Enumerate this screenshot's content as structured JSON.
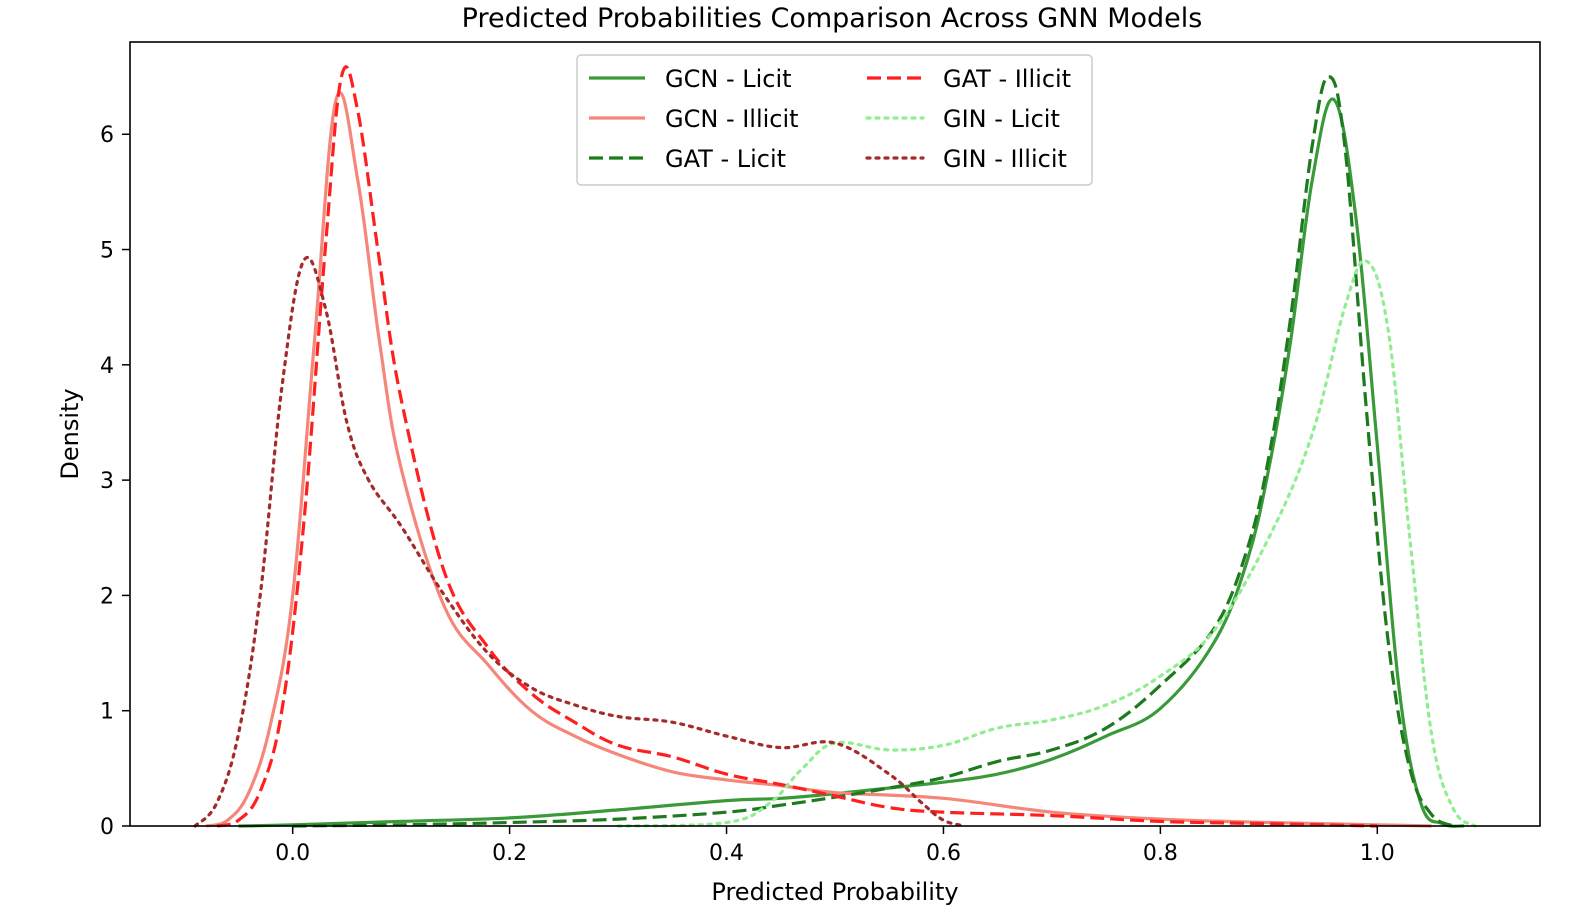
{
  "chart_data": {
    "type": "line",
    "title": "Predicted Probabilities Comparison Across GNN Models",
    "xlabel": "Predicted Probability",
    "ylabel": "Density",
    "xlim": [
      -0.15,
      1.15
    ],
    "ylim": [
      0,
      6.8
    ],
    "xticks": [
      0.0,
      0.2,
      0.4,
      0.6,
      0.8,
      1.0
    ],
    "xtick_labels": [
      "0.0",
      "0.2",
      "0.4",
      "0.6",
      "0.8",
      "1.0"
    ],
    "yticks": [
      0,
      1,
      2,
      3,
      4,
      5,
      6
    ],
    "ytick_labels": [
      "0",
      "1",
      "2",
      "3",
      "4",
      "5",
      "6"
    ],
    "grid": false,
    "legend_position": "top-center",
    "series": [
      {
        "name": "GCN - Licit",
        "color": "#3a9a3a",
        "dash": "solid",
        "points": [
          [
            -0.05,
            0
          ],
          [
            0.0,
            0.01
          ],
          [
            0.1,
            0.04
          ],
          [
            0.2,
            0.07
          ],
          [
            0.3,
            0.14
          ],
          [
            0.4,
            0.22
          ],
          [
            0.45,
            0.24
          ],
          [
            0.5,
            0.28
          ],
          [
            0.55,
            0.33
          ],
          [
            0.6,
            0.38
          ],
          [
            0.65,
            0.45
          ],
          [
            0.7,
            0.58
          ],
          [
            0.75,
            0.78
          ],
          [
            0.8,
            1.02
          ],
          [
            0.85,
            1.6
          ],
          [
            0.88,
            2.3
          ],
          [
            0.9,
            3.1
          ],
          [
            0.92,
            4.2
          ],
          [
            0.94,
            5.6
          ],
          [
            0.96,
            6.3
          ],
          [
            0.98,
            5.3
          ],
          [
            1.0,
            3.3
          ],
          [
            1.02,
            1.2
          ],
          [
            1.04,
            0.2
          ],
          [
            1.06,
            0.02
          ],
          [
            1.08,
            0
          ]
        ]
      },
      {
        "name": "GCN - Illicit",
        "color": "#f5877a",
        "dash": "solid",
        "points": [
          [
            -0.08,
            0
          ],
          [
            -0.06,
            0.05
          ],
          [
            -0.04,
            0.3
          ],
          [
            -0.02,
            0.9
          ],
          [
            0.0,
            2.0
          ],
          [
            0.02,
            4.2
          ],
          [
            0.04,
            6.3
          ],
          [
            0.06,
            5.6
          ],
          [
            0.08,
            4.2
          ],
          [
            0.1,
            3.1
          ],
          [
            0.14,
            1.9
          ],
          [
            0.18,
            1.4
          ],
          [
            0.22,
            1.0
          ],
          [
            0.26,
            0.78
          ],
          [
            0.3,
            0.62
          ],
          [
            0.35,
            0.47
          ],
          [
            0.4,
            0.4
          ],
          [
            0.45,
            0.35
          ],
          [
            0.5,
            0.29
          ],
          [
            0.6,
            0.24
          ],
          [
            0.7,
            0.12
          ],
          [
            0.8,
            0.06
          ],
          [
            0.9,
            0.03
          ],
          [
            1.0,
            0.01
          ],
          [
            1.05,
            0
          ]
        ]
      },
      {
        "name": "GAT - Licit",
        "color": "#1e7a1e",
        "dash": "dashed",
        "points": [
          [
            0.0,
            0
          ],
          [
            0.1,
            0.01
          ],
          [
            0.2,
            0.03
          ],
          [
            0.3,
            0.06
          ],
          [
            0.4,
            0.12
          ],
          [
            0.45,
            0.18
          ],
          [
            0.5,
            0.25
          ],
          [
            0.55,
            0.33
          ],
          [
            0.6,
            0.42
          ],
          [
            0.65,
            0.56
          ],
          [
            0.7,
            0.66
          ],
          [
            0.75,
            0.85
          ],
          [
            0.8,
            1.22
          ],
          [
            0.85,
            1.72
          ],
          [
            0.88,
            2.4
          ],
          [
            0.9,
            3.2
          ],
          [
            0.92,
            4.4
          ],
          [
            0.94,
            5.9
          ],
          [
            0.955,
            6.5
          ],
          [
            0.97,
            5.9
          ],
          [
            0.99,
            3.6
          ],
          [
            1.01,
            1.6
          ],
          [
            1.03,
            0.5
          ],
          [
            1.05,
            0.1
          ],
          [
            1.07,
            0
          ]
        ]
      },
      {
        "name": "GAT - Illicit",
        "color": "#ff1f1f",
        "dash": "dashed",
        "points": [
          [
            -0.07,
            0
          ],
          [
            -0.05,
            0.05
          ],
          [
            -0.03,
            0.3
          ],
          [
            -0.01,
            1.0
          ],
          [
            0.01,
            2.6
          ],
          [
            0.03,
            5.0
          ],
          [
            0.045,
            6.5
          ],
          [
            0.06,
            6.2
          ],
          [
            0.08,
            4.9
          ],
          [
            0.1,
            3.7
          ],
          [
            0.14,
            2.2
          ],
          [
            0.18,
            1.55
          ],
          [
            0.22,
            1.15
          ],
          [
            0.26,
            0.9
          ],
          [
            0.3,
            0.7
          ],
          [
            0.35,
            0.6
          ],
          [
            0.4,
            0.45
          ],
          [
            0.45,
            0.36
          ],
          [
            0.5,
            0.26
          ],
          [
            0.55,
            0.16
          ],
          [
            0.6,
            0.12
          ],
          [
            0.7,
            0.09
          ],
          [
            0.8,
            0.04
          ],
          [
            0.9,
            0.02
          ],
          [
            1.0,
            0
          ]
        ]
      },
      {
        "name": "GIN - Licit",
        "color": "#90ee90",
        "dash": "dotted",
        "points": [
          [
            0.3,
            0
          ],
          [
            0.4,
            0.03
          ],
          [
            0.44,
            0.2
          ],
          [
            0.47,
            0.5
          ],
          [
            0.5,
            0.72
          ],
          [
            0.55,
            0.66
          ],
          [
            0.6,
            0.7
          ],
          [
            0.65,
            0.85
          ],
          [
            0.7,
            0.92
          ],
          [
            0.75,
            1.05
          ],
          [
            0.8,
            1.3
          ],
          [
            0.85,
            1.7
          ],
          [
            0.9,
            2.5
          ],
          [
            0.94,
            3.4
          ],
          [
            0.97,
            4.5
          ],
          [
            0.99,
            4.9
          ],
          [
            1.01,
            4.3
          ],
          [
            1.03,
            2.5
          ],
          [
            1.05,
            0.8
          ],
          [
            1.07,
            0.15
          ],
          [
            1.09,
            0
          ]
        ]
      },
      {
        "name": "GIN - Illicit",
        "color": "#a52a2a",
        "dash": "dotted",
        "points": [
          [
            -0.09,
            0
          ],
          [
            -0.07,
            0.2
          ],
          [
            -0.05,
            0.8
          ],
          [
            -0.03,
            2.0
          ],
          [
            -0.01,
            3.8
          ],
          [
            0.01,
            4.9
          ],
          [
            0.03,
            4.5
          ],
          [
            0.05,
            3.5
          ],
          [
            0.07,
            3.0
          ],
          [
            0.1,
            2.6
          ],
          [
            0.14,
            2.0
          ],
          [
            0.18,
            1.5
          ],
          [
            0.22,
            1.2
          ],
          [
            0.26,
            1.05
          ],
          [
            0.3,
            0.95
          ],
          [
            0.35,
            0.9
          ],
          [
            0.4,
            0.78
          ],
          [
            0.45,
            0.68
          ],
          [
            0.5,
            0.72
          ],
          [
            0.55,
            0.45
          ],
          [
            0.58,
            0.2
          ],
          [
            0.6,
            0.05
          ],
          [
            0.62,
            0
          ]
        ]
      }
    ]
  }
}
